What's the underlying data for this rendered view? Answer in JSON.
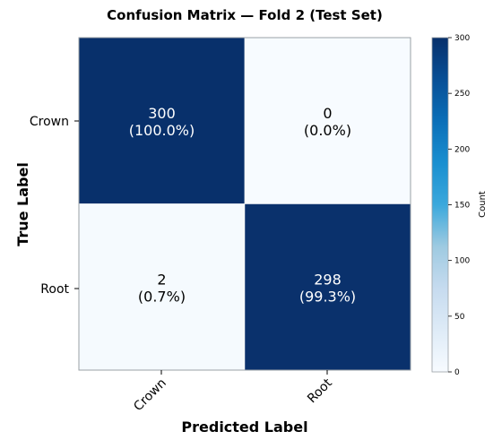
{
  "chart_data": {
    "type": "heatmap",
    "title": "Confusion Matrix — Fold 2 (Test Set)",
    "xlabel": "Predicted Label",
    "ylabel": "True Label",
    "x_categories": [
      "Crown",
      "Root"
    ],
    "y_categories": [
      "Crown",
      "Root"
    ],
    "values": [
      [
        300,
        0
      ],
      [
        2,
        298
      ]
    ],
    "percentages": [
      [
        "(100.0%)",
        "(0.0%)"
      ],
      [
        "(0.7%)",
        "(99.3%)"
      ]
    ],
    "colorbar": {
      "label": "Count",
      "range": [
        0,
        300
      ],
      "ticks": [
        0,
        50,
        100,
        150,
        200,
        250,
        300
      ],
      "colormap": "Blues"
    },
    "colors": {
      "low": "#f7fbff",
      "high": "#08306b",
      "text_light": "#ffffff",
      "text_dark": "#000000"
    }
  }
}
